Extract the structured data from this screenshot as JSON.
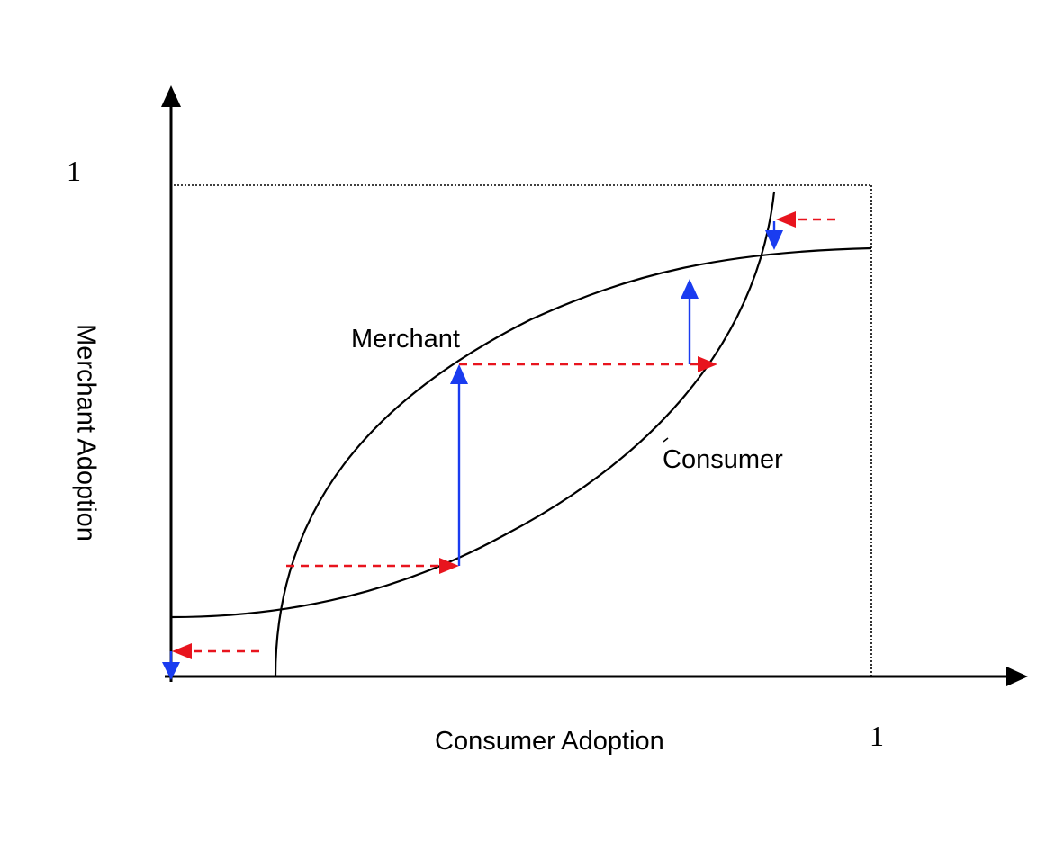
{
  "diagram": {
    "x_axis_label": "Consumer Adoption",
    "y_axis_label": "Merchant Adoption",
    "x_max_label": "1",
    "y_max_label": "1",
    "curve_labels": {
      "merchant": "Merchant",
      "consumer": "Consumer"
    },
    "colors": {
      "axis": "#000000",
      "curve": "#000000",
      "vertical_arrow": "#1a3cf0",
      "horizontal_arrow": "#e8141e",
      "bound_box": "#000000"
    }
  }
}
